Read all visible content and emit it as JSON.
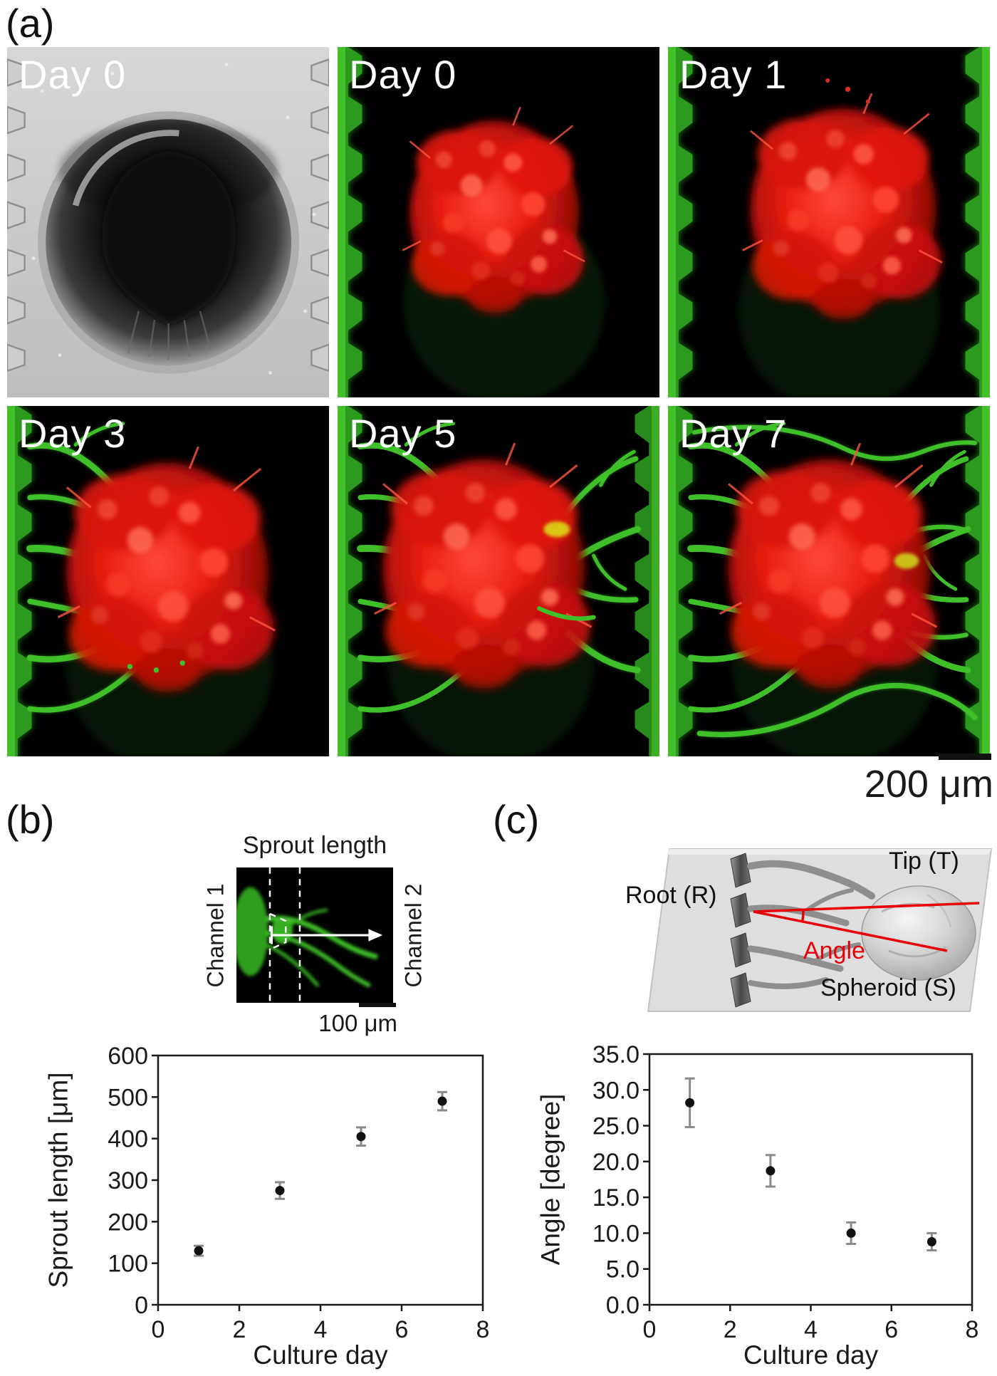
{
  "figure": {
    "panel_a_label": "(a)",
    "panel_b_label": "(b)",
    "panel_c_label": "(c)",
    "scale_bar_a": "200 μm"
  },
  "colors": {
    "spheroid_red": "#e81d0f",
    "vessel_green": "#3fc02a",
    "angle_red": "#e8000b"
  },
  "panel_a": {
    "images": [
      {
        "label": "Day 0",
        "type": "brightfield"
      },
      {
        "label": "Day 0",
        "type": "fluorescence"
      },
      {
        "label": "Day 1",
        "type": "fluorescence"
      },
      {
        "label": "Day 3",
        "type": "fluorescence"
      },
      {
        "label": "Day 5",
        "type": "fluorescence"
      },
      {
        "label": "Day 7",
        "type": "fluorescence"
      }
    ]
  },
  "panel_b": {
    "inset": {
      "title": "Sprout length",
      "left_label": "Channel 1",
      "right_label": "Channel 2",
      "scale_bar": "100 μm"
    }
  },
  "panel_c": {
    "schematic": {
      "root_label": "Root (R)",
      "tip_label": "Tip (T)",
      "angle_label": "Angle",
      "spheroid_label": "Spheroid (S)"
    }
  },
  "chart_data": [
    {
      "type": "scatter",
      "panel": "b",
      "x": [
        1,
        3,
        5,
        7
      ],
      "y": [
        130,
        275,
        405,
        490
      ],
      "yerr": [
        12,
        20,
        22,
        22
      ],
      "xlabel": "Culture day",
      "ylabel": "Sprout length [μm]",
      "xlim": [
        0,
        8
      ],
      "ylim": [
        0,
        600
      ],
      "xtick_labels": [
        "0",
        "2",
        "4",
        "6",
        "8"
      ],
      "ytick_labels": [
        "0",
        "100",
        "200",
        "300",
        "400",
        "500",
        "600"
      ],
      "marker_color": "#111111",
      "error_color": "#8a8a8a",
      "grid": false,
      "legend": "none"
    },
    {
      "type": "scatter",
      "panel": "c",
      "x": [
        1,
        3,
        5,
        7
      ],
      "y": [
        28.2,
        18.7,
        10.0,
        8.8
      ],
      "yerr": [
        3.4,
        2.2,
        1.5,
        1.2
      ],
      "xlabel": "Culture day",
      "ylabel": "Angle [degree]",
      "xlim": [
        0,
        8
      ],
      "ylim": [
        0,
        35
      ],
      "xtick_labels": [
        "0",
        "2",
        "4",
        "6",
        "8"
      ],
      "ytick_labels": [
        "0.0",
        "5.0",
        "10.0",
        "15.0",
        "20.0",
        "25.0",
        "30.0",
        "35.0"
      ],
      "marker_color": "#111111",
      "error_color": "#8a8a8a",
      "grid": false,
      "legend": "none"
    }
  ]
}
